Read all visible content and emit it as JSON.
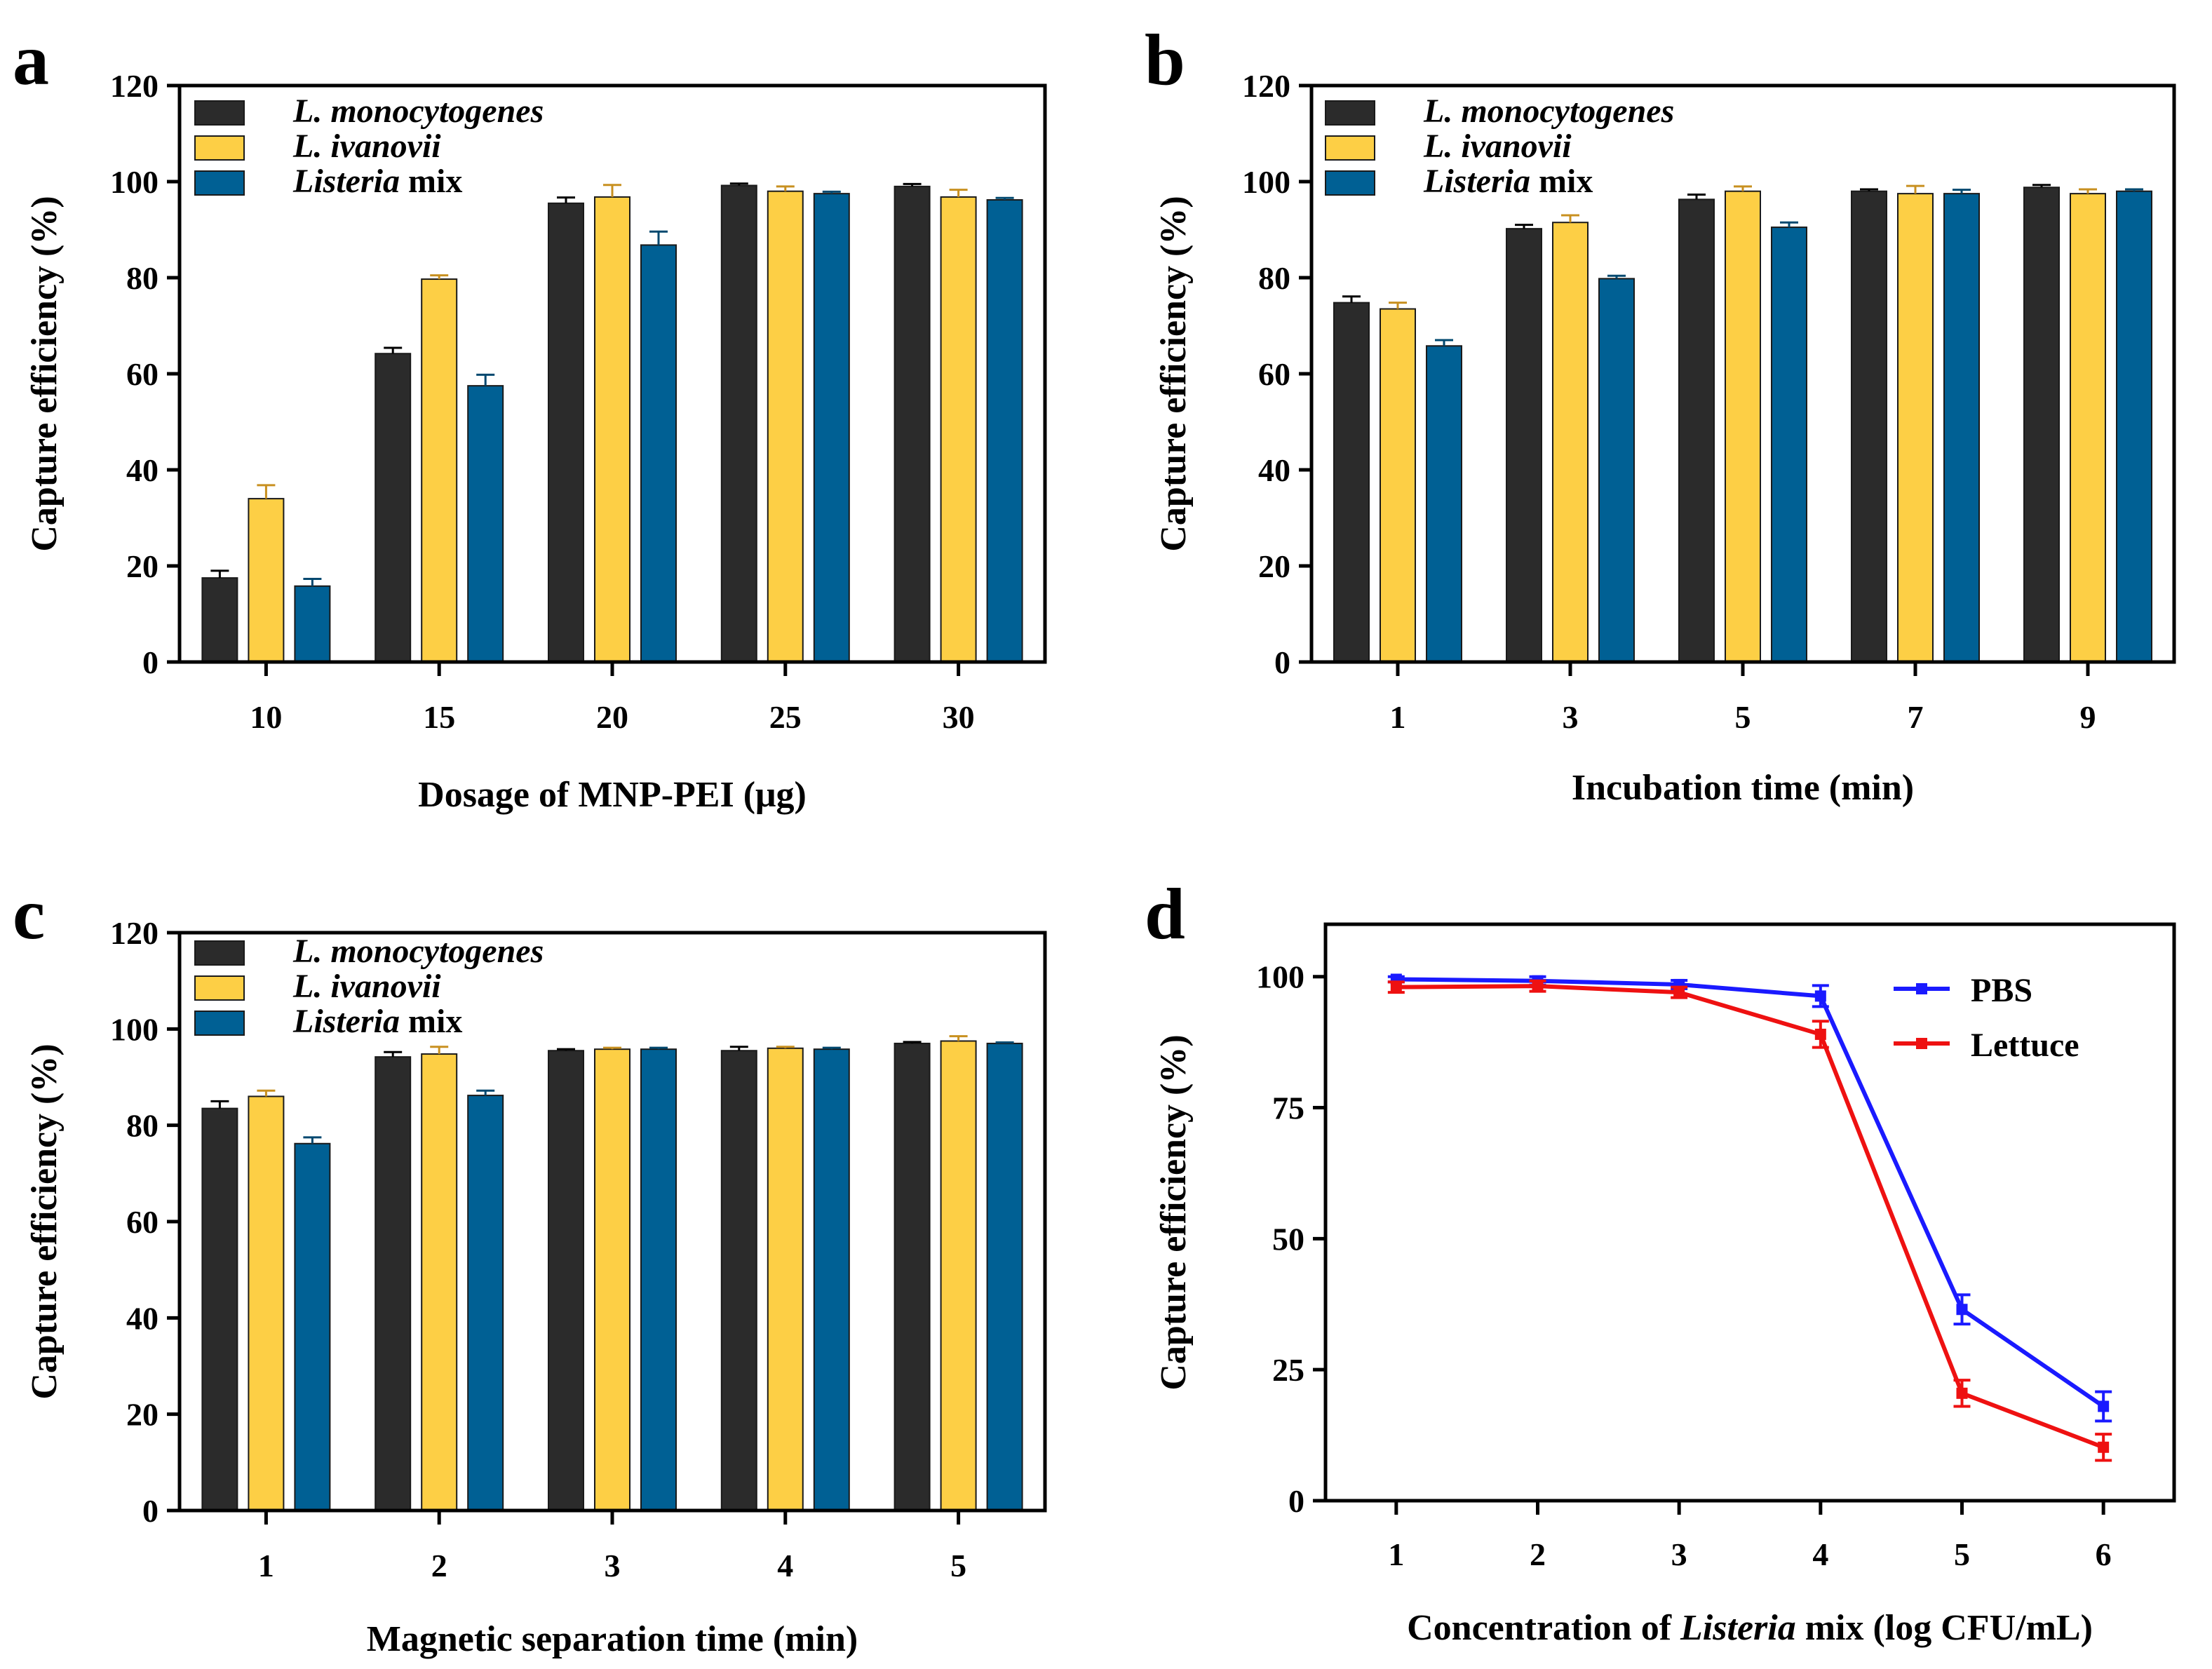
{
  "chart_data": [
    {
      "panel": "a",
      "type": "bar",
      "xlabel": "Dosage of MNP-PEI (μg)",
      "ylabel": "Capture efficiency (%)",
      "ylim": [
        0,
        120
      ],
      "yticks": [
        0,
        20,
        40,
        60,
        80,
        100,
        120
      ],
      "categories": [
        "10",
        "15",
        "20",
        "25",
        "30"
      ],
      "legend_position": "top-left",
      "series": [
        {
          "name": "L. monocytogenes",
          "name_italic": "L. monocytogenes",
          "name_plain": "",
          "color": "#2b2b2b",
          "error_color": "#000000",
          "values": [
            17.5,
            64.2,
            95.5,
            99.2,
            99.0
          ],
          "errors": [
            1.5,
            1.2,
            1.2,
            0.4,
            0.5
          ]
        },
        {
          "name": "L. ivanovii",
          "name_italic": "L. ivanovii",
          "name_plain": "",
          "color": "#fdcf45",
          "error_color": "#c89020",
          "values": [
            34.0,
            79.7,
            96.8,
            98.0,
            96.8
          ],
          "errors": [
            2.8,
            0.8,
            2.5,
            1.0,
            1.5
          ]
        },
        {
          "name": "Listeria mix",
          "name_italic": "Listeria",
          "name_plain": " mix",
          "color": "#006094",
          "error_color": "#00486f",
          "values": [
            15.8,
            57.5,
            86.8,
            97.5,
            96.2
          ],
          "errors": [
            1.5,
            2.3,
            2.8,
            0.4,
            0.4
          ]
        }
      ]
    },
    {
      "panel": "b",
      "type": "bar",
      "xlabel": "Incubation time (min)",
      "ylabel": "Capture efficiency (%)",
      "ylim": [
        0,
        120
      ],
      "yticks": [
        0,
        20,
        40,
        60,
        80,
        100,
        120
      ],
      "categories": [
        "1",
        "3",
        "5",
        "7",
        "9"
      ],
      "legend_position": "top-left",
      "series": [
        {
          "name": "L. monocytogenes",
          "name_italic": "L. monocytogenes",
          "name_plain": "",
          "color": "#2b2b2b",
          "error_color": "#000000",
          "values": [
            74.8,
            90.2,
            96.3,
            98.0,
            98.8
          ],
          "errors": [
            1.3,
            0.8,
            1.0,
            0.4,
            0.5
          ]
        },
        {
          "name": "L. ivanovii",
          "name_italic": "L. ivanovii",
          "name_plain": "",
          "color": "#fdcf45",
          "error_color": "#c89020",
          "values": [
            73.5,
            91.5,
            98.0,
            97.5,
            97.5
          ],
          "errors": [
            1.3,
            1.5,
            1.0,
            1.6,
            0.9
          ]
        },
        {
          "name": "Listeria mix",
          "name_italic": "Listeria",
          "name_plain": " mix",
          "color": "#006094",
          "error_color": "#00486f",
          "values": [
            65.8,
            79.8,
            90.5,
            97.5,
            98.0
          ],
          "errors": [
            1.2,
            0.6,
            1.0,
            0.8,
            0.4
          ]
        }
      ]
    },
    {
      "panel": "c",
      "type": "bar",
      "xlabel": "Magnetic separation time (min)",
      "ylabel": "Capture efficiency (%)",
      "ylim": [
        0,
        120
      ],
      "yticks": [
        0,
        20,
        40,
        60,
        80,
        100,
        120
      ],
      "categories": [
        "1",
        "2",
        "3",
        "4",
        "5"
      ],
      "legend_position": "top-left",
      "series": [
        {
          "name": "L. monocytogenes",
          "name_italic": "L. monocytogenes",
          "name_plain": "",
          "color": "#2b2b2b",
          "error_color": "#000000",
          "values": [
            83.5,
            94.2,
            95.5,
            95.5,
            97.0
          ],
          "errors": [
            1.5,
            1.0,
            0.3,
            0.8,
            0.3
          ]
        },
        {
          "name": "L. ivanovii",
          "name_italic": "L. ivanovii",
          "name_plain": "",
          "color": "#fdcf45",
          "error_color": "#c89020",
          "values": [
            86.0,
            94.8,
            95.8,
            96.0,
            97.5
          ],
          "errors": [
            1.2,
            1.5,
            0.3,
            0.3,
            1.0
          ]
        },
        {
          "name": "Listeria mix",
          "name_italic": "Listeria",
          "name_plain": " mix",
          "color": "#006094",
          "error_color": "#00486f",
          "values": [
            76.2,
            86.2,
            95.8,
            95.8,
            97.0
          ],
          "errors": [
            1.3,
            1.0,
            0.3,
            0.3,
            0.2
          ]
        }
      ]
    },
    {
      "panel": "d",
      "type": "line",
      "xlabel_parts": {
        "before": "Concentration of ",
        "italic": "Listeria",
        "after": " mix (log CFU/mL)"
      },
      "ylabel": "Capture efficiency (%)",
      "ylim": [
        0,
        110
      ],
      "yticks": [
        0,
        25,
        50,
        75,
        100
      ],
      "xlim": [
        0.5,
        6.5
      ],
      "x": [
        1,
        2,
        3,
        4,
        5,
        6
      ],
      "legend_position": "top-right",
      "series": [
        {
          "name": "PBS",
          "color": "#1a1aff",
          "values": [
            99.5,
            99.2,
            98.5,
            96.3,
            36.5,
            18.0
          ],
          "errors": [
            0.5,
            0.8,
            0.8,
            2.0,
            2.8,
            2.8
          ]
        },
        {
          "name": "Lettuce",
          "color": "#ee1111",
          "values": [
            98.0,
            98.2,
            97.0,
            89.0,
            20.5,
            10.2
          ],
          "errors": [
            1.0,
            1.0,
            1.0,
            2.5,
            2.5,
            2.5
          ]
        }
      ]
    }
  ],
  "panel_letters": [
    "a",
    "b",
    "c",
    "d"
  ]
}
